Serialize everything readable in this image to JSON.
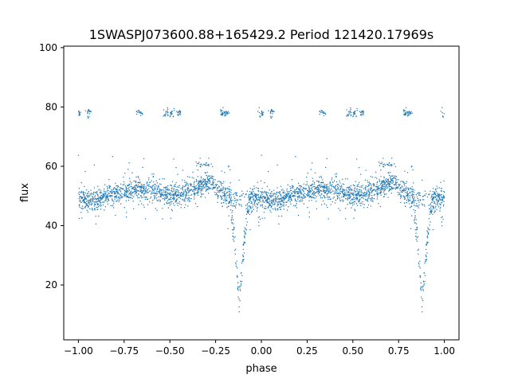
{
  "chart_data": {
    "type": "scatter",
    "title": "1SWASPJ073600.88+165429.2 Period 121420.17969s",
    "xlabel": "phase",
    "ylabel": "flux",
    "xlim": [
      -1.08,
      1.08
    ],
    "ylim": [
      1.5,
      100.5
    ],
    "grid": false,
    "legend": "none",
    "marker_color": "#1f77b4",
    "x_ticks": [
      -1.0,
      -0.75,
      -0.5,
      -0.25,
      0.0,
      0.25,
      0.5,
      0.75,
      1.0
    ],
    "x_tick_labels": [
      "−1.00",
      "−0.75",
      "−0.50",
      "−0.25",
      "0.00",
      "0.25",
      "0.50",
      "0.75",
      "1.00"
    ],
    "y_ticks": [
      20,
      40,
      60,
      80,
      100
    ],
    "y_tick_labels": [
      "20",
      "40",
      "60",
      "80",
      "100"
    ],
    "light_curve": {
      "phase_period": 1.0,
      "baseline": [
        [
          0.0,
          49
        ],
        [
          0.1,
          48.5
        ],
        [
          0.2,
          51
        ],
        [
          0.3,
          52
        ],
        [
          0.45,
          51
        ],
        [
          0.55,
          50
        ],
        [
          0.65,
          53
        ],
        [
          0.72,
          55
        ],
        [
          0.78,
          51
        ],
        [
          0.85,
          49
        ],
        [
          1.0,
          49
        ]
      ],
      "scatter_sd": 1.8,
      "dip": {
        "center": 0.88,
        "depth_to": 14,
        "half_width": 0.06
      },
      "upper_cluster": {
        "y": 78,
        "phases": [
          0.0,
          0.06,
          0.33,
          0.48,
          0.51,
          0.55,
          0.79,
          0.81
        ]
      },
      "mid_cluster": {
        "y": 60.5,
        "phases": [
          0.66,
          0.7
        ]
      }
    }
  }
}
